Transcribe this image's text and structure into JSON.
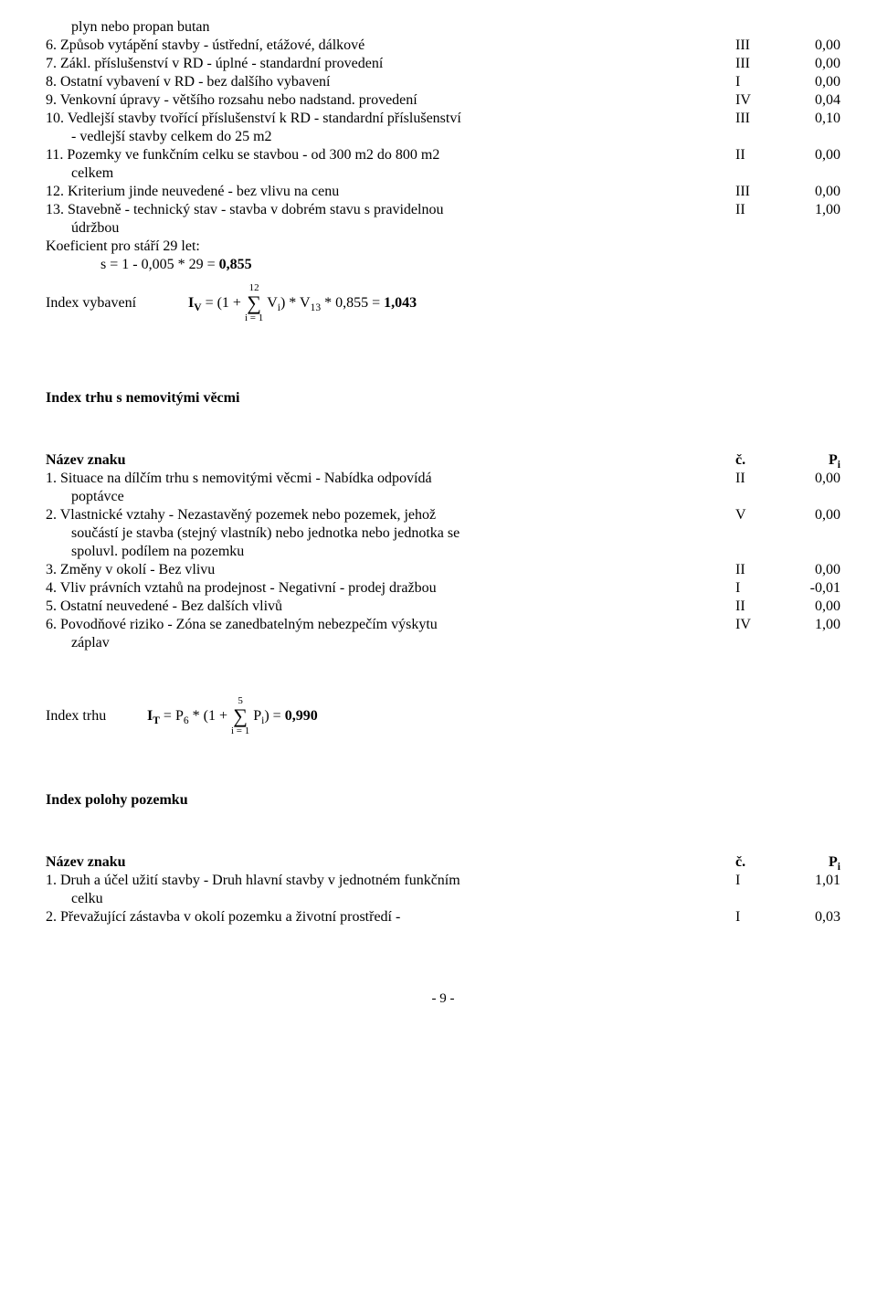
{
  "items1": [
    {
      "text_a": "plyn nebo propan butan",
      "indent": true,
      "c": "",
      "v": ""
    },
    {
      "text_a": "6. Způsob vytápění stavby - ústřední, etážové, dálkové",
      "c": "III",
      "v": "0,00"
    },
    {
      "text_a": "7. Zákl. příslušenství v RD - úplné - standardní provedení",
      "c": "III",
      "v": "0,00"
    },
    {
      "text_a": "8. Ostatní vybavení v RD - bez dalšího vybavení",
      "c": "I",
      "v": "0,00"
    },
    {
      "text_a": "9. Venkovní úpravy - většího rozsahu nebo nadstand. provedení",
      "c": "IV",
      "v": "0,04"
    },
    {
      "text_a": "10. Vedlejší stavby tvořící příslušenství k RD - standardní příslušenství",
      "text_b": "- vedlejší stavby celkem do 25 m2",
      "c": "III",
      "v": "0,10"
    },
    {
      "text_a": "11. Pozemky ve funkčním celku se stavbou - od 300 m2 do 800 m2",
      "text_b": "celkem",
      "c": "II",
      "v": "0,00"
    },
    {
      "text_a": "12. Kriterium jinde neuvedené - bez vlivu na cenu",
      "c": "III",
      "v": "0,00"
    },
    {
      "text_a": "13. Stavebně - technický stav - stavba v dobrém stavu s pravidelnou",
      "text_b": "údržbou",
      "c": "II",
      "v": "1,00"
    }
  ],
  "koef_line": "Koeficient pro stáří 29 let:",
  "koef_eq_pre": "s = 1 - 0,005 * 29 = ",
  "koef_eq_bold": "0,855",
  "iv_label": "Index vybavení",
  "iv_lead": "I",
  "iv_lead_sub": "V",
  "iv_mid": " = (1 + ",
  "iv_sum_top": "12",
  "iv_sum_bot": "i = 1",
  "iv_after_a": " V",
  "iv_after_a_sub": "i",
  "iv_after_b": ") * V",
  "iv_after_b_sub": "13",
  "iv_after_c": " * 0,855 = ",
  "iv_result": "1,043",
  "section_trhu": "Index trhu s nemovitými věcmi",
  "head_name": "Název znaku",
  "head_c": "č.",
  "head_v_a": "P",
  "head_v_sub": "i",
  "items2": [
    {
      "text_a": "1. Situace na dílčím trhu s nemovitými věcmi - Nabídka odpovídá",
      "text_b": "poptávce",
      "c": "II",
      "v": "0,00"
    },
    {
      "text_a": "2. Vlastnické vztahy - Nezastavěný pozemek nebo pozemek, jehož",
      "text_b": "součástí je stavba (stejný vlastník) nebo jednotka nebo jednotka se",
      "text_c": "spoluvl. podílem na pozemku",
      "c": "V",
      "v": "0,00"
    },
    {
      "text_a": "3. Změny v okolí - Bez vlivu",
      "c": "II",
      "v": "0,00"
    },
    {
      "text_a": "4. Vliv právních vztahů na prodejnost - Negativní - prodej dražbou",
      "c": "I",
      "v": "-0,01"
    },
    {
      "text_a": "5. Ostatní neuvedené - Bez dalších vlivů",
      "c": "II",
      "v": "0,00"
    },
    {
      "text_a": "6. Povodňové riziko - Zóna se zanedbatelným nebezpečím výskytu",
      "text_b": "záplav",
      "c": "IV",
      "v": "1,00"
    }
  ],
  "it_label": "Index trhu",
  "it_lead": "I",
  "it_lead_sub": "T",
  "it_mid_a": " = P",
  "it_mid_a_sub": "6",
  "it_mid_b": " * (1 + ",
  "it_sum_top": "5",
  "it_sum_bot": "i = 1",
  "it_after_a": " P",
  "it_after_a_sub": "i",
  "it_after_b": ") = ",
  "it_result": "0,990",
  "section_polohy": "Index polohy pozemku",
  "items3": [
    {
      "text_a": "1. Druh a účel užití stavby - Druh hlavní stavby v jednotném funkčním",
      "text_b": "celku",
      "c": "I",
      "v": "1,01"
    },
    {
      "text_a": "2. Převažující zástavba v okolí pozemku a životní prostředí -",
      "c": "I",
      "v": "0,03"
    }
  ],
  "pagenum": "- 9 -"
}
